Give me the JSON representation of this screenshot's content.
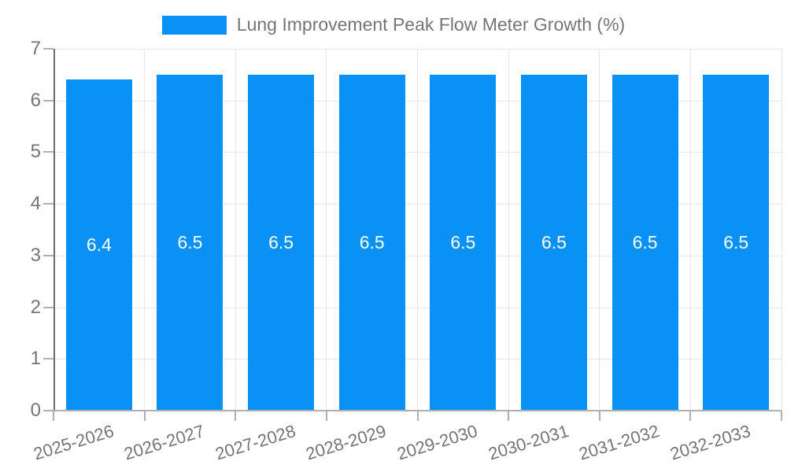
{
  "chart_data": {
    "type": "bar",
    "title": "",
    "legend": "Lung Improvement Peak Flow Meter Growth (%)",
    "legend_position": "top-center",
    "categories": [
      "2025-2026",
      "2026-2027",
      "2027-2028",
      "2028-2029",
      "2029-2030",
      "2030-2031",
      "2031-2032",
      "2032-2033"
    ],
    "values": [
      6.4,
      6.5,
      6.5,
      6.5,
      6.5,
      6.5,
      6.5,
      6.5
    ],
    "bar_labels": [
      "6.4",
      "6.5",
      "6.5",
      "6.5",
      "6.5",
      "6.5",
      "6.5",
      "6.5"
    ],
    "xlabel": "",
    "ylabel": "",
    "ylim": [
      0,
      7
    ],
    "yticks": [
      0,
      1,
      2,
      3,
      4,
      5,
      6,
      7
    ],
    "grid": true,
    "colors": {
      "bar": "#0991f5",
      "bar_label": "#ffffff",
      "grid": "#e6e6e6",
      "axis_line": "#6e6e6e",
      "baseline": "#b0b0b0",
      "tick_mark": "#b0b0b0",
      "tick_text": "#757575"
    }
  }
}
